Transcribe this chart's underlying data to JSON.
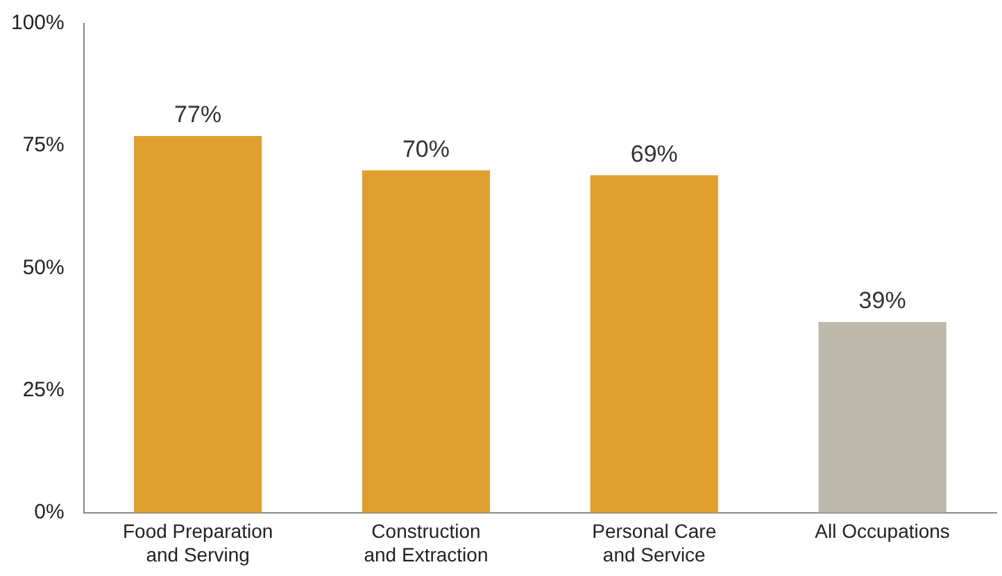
{
  "chart_data": {
    "type": "bar",
    "categories": [
      "Food Preparation and Serving",
      "Construction and Extraction",
      "Personal Care and Service",
      "All Occupations"
    ],
    "values": [
      77,
      70,
      69,
      39
    ],
    "colors": [
      "#e09f2c",
      "#e09f2c",
      "#e09f2c",
      "#bdb9ab"
    ],
    "value_labels": [
      "77%",
      "70%",
      "69%",
      "39%"
    ],
    "ylim": [
      0,
      100
    ],
    "yticks": [
      {
        "value": 0,
        "label": "0%"
      },
      {
        "value": 25,
        "label": "25%"
      },
      {
        "value": 50,
        "label": "50%"
      },
      {
        "value": 75,
        "label": "75%"
      },
      {
        "value": 100,
        "label": "100%"
      }
    ],
    "grid": false,
    "legend": false
  }
}
